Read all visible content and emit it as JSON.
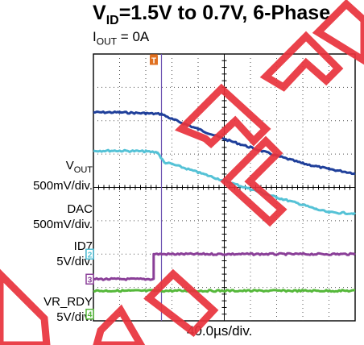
{
  "header": {
    "title_pre": "V",
    "title_sub": "ID",
    "title_post": "=1.5V to 0.7V, 6-Phase",
    "subtitle_pre": "I",
    "subtitle_sub": "OUT",
    "subtitle_post": " = 0A"
  },
  "channels": [
    {
      "id": "1",
      "name_pre": "V",
      "name_sub": "OUT",
      "scale": "500mV/div.",
      "color": "#1f3f9a"
    },
    {
      "id": "2",
      "name_pre": "DAC",
      "name_sub": "",
      "scale": "500mV/div.",
      "color": "#55c2d6"
    },
    {
      "id": "3",
      "name_pre": "ID7",
      "name_sub": "",
      "scale": "5V/div.",
      "color": "#8a3f98"
    },
    {
      "id": "4",
      "name_pre": "VR_RDY",
      "name_sub": "",
      "scale": "5V/div.",
      "color": "#55b83a"
    }
  ],
  "trigger_marker": {
    "label": "T",
    "color": "#e07020"
  },
  "watermark": {
    "color": "#e8323c"
  },
  "chart_data": {
    "type": "line",
    "xlabel": "40.0µs/div.",
    "x_divisions": 10,
    "y_divisions": 8,
    "grid": true,
    "x_units": "divisions from left edge",
    "y_units": "divisions from bottom edge",
    "series": [
      {
        "channel": "1",
        "name": "VOUT",
        "x": [
          0,
          1.0,
          2.0,
          2.6,
          3.0,
          4.0,
          5.0,
          6.0,
          7.0,
          8.0,
          9.0,
          10.0
        ],
        "y": [
          6.25,
          6.25,
          6.22,
          6.2,
          6.05,
          5.75,
          5.45,
          5.2,
          4.95,
          4.72,
          4.55,
          4.42
        ]
      },
      {
        "channel": "2",
        "name": "DAC",
        "x": [
          0,
          1.0,
          2.0,
          2.45,
          2.7,
          3.0,
          4.0,
          5.0,
          6.0,
          7.0,
          8.0,
          8.5,
          9.0,
          10.0
        ],
        "y": [
          5.1,
          5.1,
          5.08,
          5.05,
          4.75,
          4.7,
          4.45,
          4.2,
          3.95,
          3.7,
          3.48,
          3.35,
          3.25,
          3.22
        ]
      },
      {
        "channel": "3",
        "name": "ID7",
        "x": [
          0,
          2.3,
          2.3,
          10.0
        ],
        "y": [
          1.25,
          1.25,
          2.0,
          2.0
        ]
      },
      {
        "channel": "4",
        "name": "VR_RDY",
        "x": [
          0,
          10.0
        ],
        "y": [
          0.9,
          0.9
        ]
      }
    ],
    "cursor_x": 2.6,
    "ground_markers": {
      "1": 2.0,
      "2": 2.0,
      "3": 1.25,
      "4": 0.2
    }
  }
}
